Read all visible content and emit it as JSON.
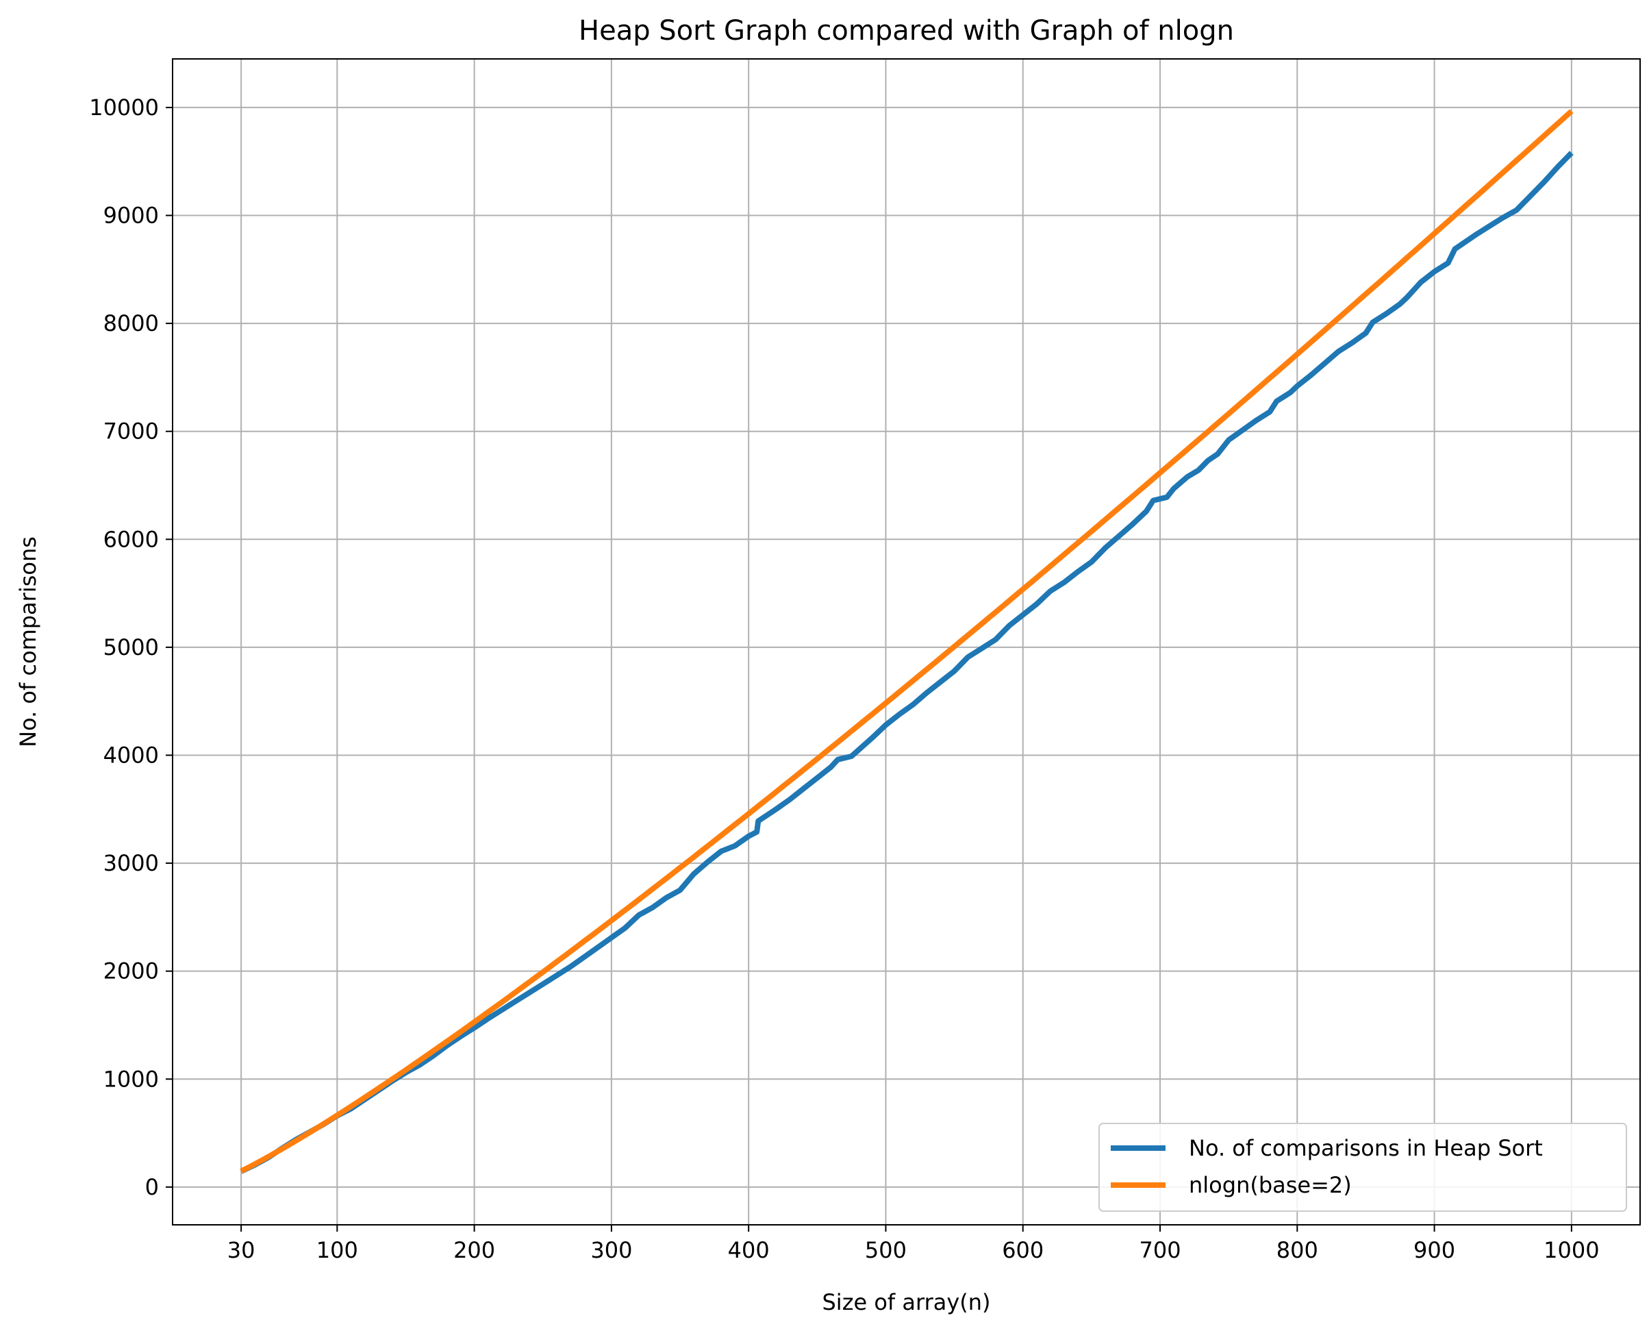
{
  "chart_data": {
    "type": "line",
    "title": "Heap Sort Graph compared with Graph of nlogn",
    "xlabel": "Size of array(n)",
    "ylabel": "No. of comparisons",
    "xlim": [
      -20,
      1050
    ],
    "ylim": [
      -350,
      10450
    ],
    "xticks": [
      30,
      100,
      200,
      300,
      400,
      500,
      600,
      700,
      800,
      900,
      1000
    ],
    "yticks": [
      0,
      1000,
      2000,
      3000,
      4000,
      5000,
      6000,
      7000,
      8000,
      9000,
      10000
    ],
    "grid": true,
    "legend_position": "lower-right",
    "series": [
      {
        "name": "No. of comparisons in Heap Sort",
        "color": "#1f77b4",
        "points": [
          [
            30,
            145
          ],
          [
            40,
            205
          ],
          [
            50,
            275
          ],
          [
            60,
            360
          ],
          [
            70,
            440
          ],
          [
            80,
            510
          ],
          [
            90,
            580
          ],
          [
            100,
            660
          ],
          [
            110,
            725
          ],
          [
            120,
            810
          ],
          [
            130,
            895
          ],
          [
            140,
            980
          ],
          [
            150,
            1060
          ],
          [
            160,
            1130
          ],
          [
            170,
            1215
          ],
          [
            180,
            1310
          ],
          [
            190,
            1395
          ],
          [
            200,
            1475
          ],
          [
            210,
            1560
          ],
          [
            220,
            1640
          ],
          [
            230,
            1720
          ],
          [
            240,
            1800
          ],
          [
            250,
            1880
          ],
          [
            260,
            1960
          ],
          [
            270,
            2040
          ],
          [
            280,
            2130
          ],
          [
            290,
            2220
          ],
          [
            300,
            2310
          ],
          [
            310,
            2400
          ],
          [
            320,
            2520
          ],
          [
            330,
            2590
          ],
          [
            340,
            2680
          ],
          [
            350,
            2750
          ],
          [
            360,
            2900
          ],
          [
            370,
            3010
          ],
          [
            380,
            3110
          ],
          [
            390,
            3160
          ],
          [
            400,
            3250
          ],
          [
            406,
            3290
          ],
          [
            407,
            3390
          ],
          [
            420,
            3500
          ],
          [
            430,
            3590
          ],
          [
            440,
            3690
          ],
          [
            450,
            3790
          ],
          [
            460,
            3890
          ],
          [
            465,
            3960
          ],
          [
            475,
            3990
          ],
          [
            490,
            4160
          ],
          [
            500,
            4280
          ],
          [
            510,
            4380
          ],
          [
            520,
            4470
          ],
          [
            530,
            4580
          ],
          [
            540,
            4680
          ],
          [
            550,
            4780
          ],
          [
            560,
            4910
          ],
          [
            570,
            4990
          ],
          [
            580,
            5070
          ],
          [
            590,
            5200
          ],
          [
            600,
            5300
          ],
          [
            610,
            5400
          ],
          [
            620,
            5520
          ],
          [
            630,
            5600
          ],
          [
            640,
            5700
          ],
          [
            650,
            5790
          ],
          [
            660,
            5920
          ],
          [
            670,
            6030
          ],
          [
            680,
            6140
          ],
          [
            690,
            6260
          ],
          [
            695,
            6360
          ],
          [
            705,
            6390
          ],
          [
            710,
            6470
          ],
          [
            720,
            6580
          ],
          [
            728,
            6640
          ],
          [
            735,
            6730
          ],
          [
            742,
            6790
          ],
          [
            750,
            6920
          ],
          [
            760,
            7010
          ],
          [
            770,
            7100
          ],
          [
            780,
            7180
          ],
          [
            785,
            7280
          ],
          [
            795,
            7360
          ],
          [
            800,
            7420
          ],
          [
            810,
            7520
          ],
          [
            820,
            7630
          ],
          [
            830,
            7740
          ],
          [
            840,
            7820
          ],
          [
            850,
            7910
          ],
          [
            855,
            8010
          ],
          [
            865,
            8090
          ],
          [
            875,
            8180
          ],
          [
            880,
            8240
          ],
          [
            890,
            8380
          ],
          [
            900,
            8480
          ],
          [
            910,
            8560
          ],
          [
            915,
            8690
          ],
          [
            930,
            8820
          ],
          [
            940,
            8900
          ],
          [
            950,
            8980
          ],
          [
            960,
            9050
          ],
          [
            970,
            9180
          ],
          [
            980,
            9310
          ],
          [
            990,
            9450
          ],
          [
            1000,
            9580
          ]
        ]
      },
      {
        "name": "nlogn(base=2)",
        "color": "#ff7f0e",
        "function": "n*log2(n)",
        "x_range": [
          30,
          1000
        ]
      }
    ]
  }
}
